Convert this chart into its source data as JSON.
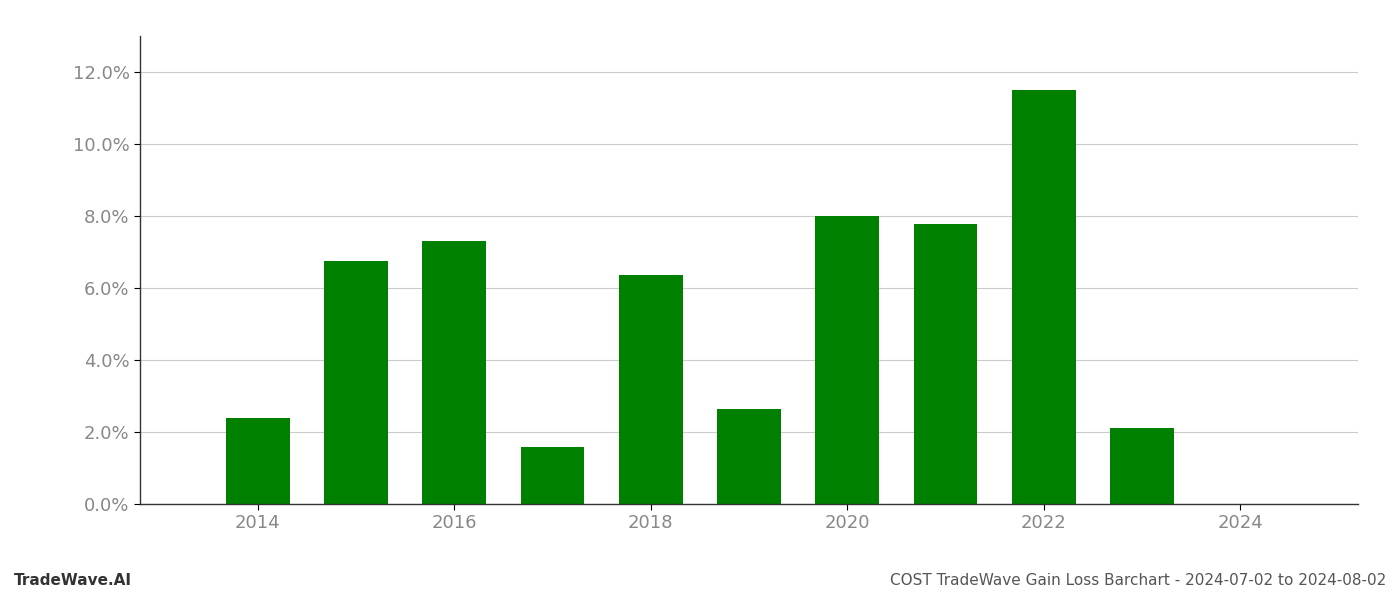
{
  "years": [
    2014,
    2015,
    2016,
    2017,
    2018,
    2019,
    2020,
    2021,
    2022,
    2023
  ],
  "values": [
    0.0238,
    0.0675,
    0.073,
    0.0158,
    0.0635,
    0.0263,
    0.08,
    0.0778,
    0.115,
    0.021
  ],
  "bar_color": "#008000",
  "background_color": "#ffffff",
  "grid_color": "#cccccc",
  "ylim": [
    0,
    0.13
  ],
  "yticks": [
    0.0,
    0.02,
    0.04,
    0.06,
    0.08,
    0.1,
    0.12
  ],
  "xticks": [
    2014,
    2016,
    2018,
    2020,
    2022,
    2024
  ],
  "footer_left": "TradeWave.AI",
  "footer_right": "COST TradeWave Gain Loss Barchart - 2024-07-02 to 2024-08-02",
  "footer_fontsize": 11,
  "tick_fontsize": 13,
  "bar_width": 0.65,
  "xlim_left": 2012.8,
  "xlim_right": 2025.2
}
